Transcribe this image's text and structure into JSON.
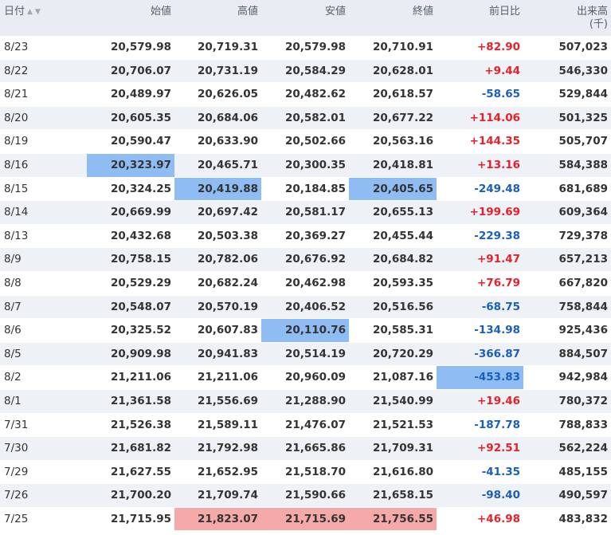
{
  "headers": {
    "date": "日付",
    "sort_up": "▲",
    "sort_down": "▼",
    "open": "始値",
    "high": "高値",
    "low": "安値",
    "close": "終値",
    "change": "前日比",
    "volume": "出来高",
    "volume_unit": "(千)"
  },
  "colors": {
    "up": "#e8202a",
    "down": "#1a5fb8",
    "low_highlight": "#8fbdf3",
    "high_highlight": "#f5a9a9"
  },
  "rows": [
    {
      "date": "8/23",
      "open": "20,579.98",
      "high": "20,719.31",
      "low": "20,579.98",
      "close": "20,710.91",
      "change": "+82.90",
      "volume": "507,023"
    },
    {
      "date": "8/22",
      "open": "20,706.07",
      "high": "20,731.19",
      "low": "20,584.29",
      "close": "20,628.01",
      "change": "+9.44",
      "volume": "546,330"
    },
    {
      "date": "8/21",
      "open": "20,489.97",
      "high": "20,626.05",
      "low": "20,482.62",
      "close": "20,618.57",
      "change": "-58.65",
      "volume": "529,844"
    },
    {
      "date": "8/20",
      "open": "20,605.35",
      "high": "20,684.06",
      "low": "20,582.01",
      "close": "20,677.22",
      "change": "+114.06",
      "volume": "501,325"
    },
    {
      "date": "8/19",
      "open": "20,590.47",
      "high": "20,633.90",
      "low": "20,502.66",
      "close": "20,563.16",
      "change": "+144.35",
      "volume": "505,707"
    },
    {
      "date": "8/16",
      "open": "20,323.97",
      "high": "20,465.71",
      "low": "20,300.35",
      "close": "20,418.81",
      "change": "+13.16",
      "volume": "584,388"
    },
    {
      "date": "8/15",
      "open": "20,324.25",
      "high": "20,419.88",
      "low": "20,184.85",
      "close": "20,405.65",
      "change": "-249.48",
      "volume": "681,689"
    },
    {
      "date": "8/14",
      "open": "20,669.99",
      "high": "20,697.42",
      "low": "20,581.17",
      "close": "20,655.13",
      "change": "+199.69",
      "volume": "609,364"
    },
    {
      "date": "8/13",
      "open": "20,432.68",
      "high": "20,503.38",
      "low": "20,369.27",
      "close": "20,455.44",
      "change": "-229.38",
      "volume": "729,378"
    },
    {
      "date": "8/9",
      "open": "20,758.15",
      "high": "20,782.06",
      "low": "20,676.92",
      "close": "20,684.82",
      "change": "+91.47",
      "volume": "657,213"
    },
    {
      "date": "8/8",
      "open": "20,529.29",
      "high": "20,682.24",
      "low": "20,462.98",
      "close": "20,593.35",
      "change": "+76.79",
      "volume": "667,820"
    },
    {
      "date": "8/7",
      "open": "20,548.07",
      "high": "20,570.19",
      "low": "20,406.52",
      "close": "20,516.56",
      "change": "-68.75",
      "volume": "758,844"
    },
    {
      "date": "8/6",
      "open": "20,325.52",
      "high": "20,607.83",
      "low": "20,110.76",
      "close": "20,585.31",
      "change": "-134.98",
      "volume": "925,436"
    },
    {
      "date": "8/5",
      "open": "20,909.98",
      "high": "20,941.83",
      "low": "20,514.19",
      "close": "20,720.29",
      "change": "-366.87",
      "volume": "884,507"
    },
    {
      "date": "8/2",
      "open": "21,211.06",
      "high": "21,211.06",
      "low": "20,960.09",
      "close": "21,087.16",
      "change": "-453.83",
      "volume": "942,984"
    },
    {
      "date": "8/1",
      "open": "21,361.58",
      "high": "21,556.69",
      "low": "21,288.90",
      "close": "21,540.99",
      "change": "+19.46",
      "volume": "780,372"
    },
    {
      "date": "7/31",
      "open": "21,526.38",
      "high": "21,589.11",
      "low": "21,476.07",
      "close": "21,521.53",
      "change": "-187.78",
      "volume": "788,833"
    },
    {
      "date": "7/30",
      "open": "21,681.82",
      "high": "21,792.98",
      "low": "21,665.86",
      "close": "21,709.31",
      "change": "+92.51",
      "volume": "562,224"
    },
    {
      "date": "7/29",
      "open": "21,627.55",
      "high": "21,652.95",
      "low": "21,518.70",
      "close": "21,616.80",
      "change": "-41.35",
      "volume": "485,155"
    },
    {
      "date": "7/26",
      "open": "21,700.20",
      "high": "21,709.74",
      "low": "21,590.66",
      "close": "21,658.15",
      "change": "-98.40",
      "volume": "490,597"
    },
    {
      "date": "7/25",
      "open": "21,715.95",
      "high": "21,823.07",
      "low": "21,715.69",
      "close": "21,756.55",
      "change": "+46.98",
      "volume": "483,832"
    }
  ],
  "highlights": [
    {
      "row": 5,
      "field": "open",
      "kind": "low"
    },
    {
      "row": 6,
      "field": "high",
      "kind": "low"
    },
    {
      "row": 6,
      "field": "close",
      "kind": "low"
    },
    {
      "row": 12,
      "field": "low",
      "kind": "low"
    },
    {
      "row": 14,
      "field": "change",
      "kind": "low"
    },
    {
      "row": 20,
      "field": "high",
      "kind": "high"
    },
    {
      "row": 20,
      "field": "low",
      "kind": "high"
    },
    {
      "row": 20,
      "field": "close",
      "kind": "high"
    }
  ]
}
